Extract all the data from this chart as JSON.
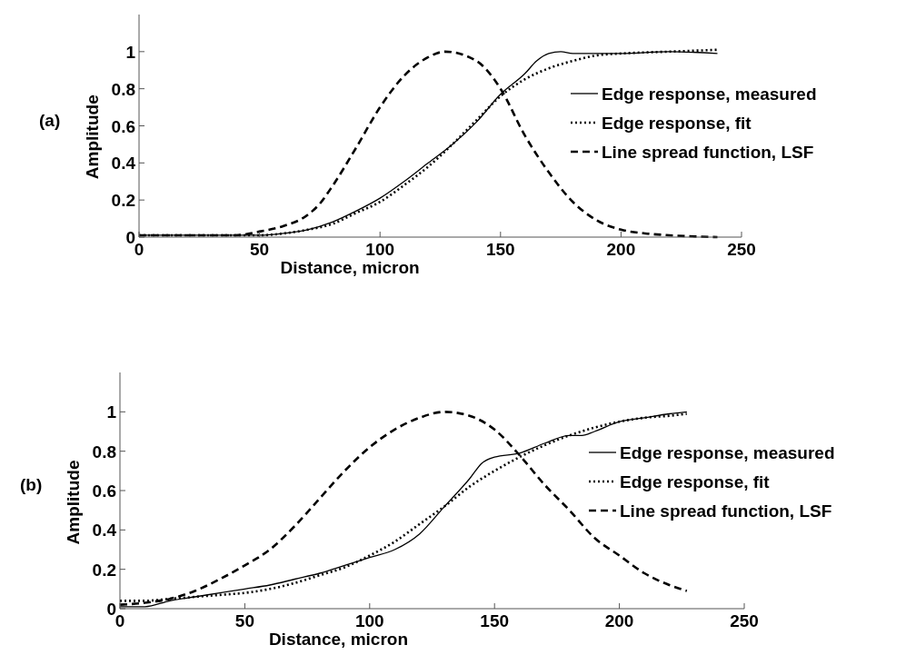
{
  "chart_data": [
    {
      "type": "line",
      "annotations": [
        "(a)"
      ],
      "xlabel": "Distance, micron",
      "ylabel": "Amplitude",
      "xlim": [
        0,
        250
      ],
      "xticks": [
        0,
        50,
        100,
        150,
        200,
        250
      ],
      "ylim": [
        0,
        1.2
      ],
      "yticks": [
        0,
        0.2,
        0.4,
        0.6,
        0.8,
        1
      ],
      "legend": "right",
      "grid": false,
      "series": [
        {
          "name": "Edge response, measured",
          "color": "#000000",
          "line_style": "solid",
          "x": [
            0,
            20,
            40,
            50,
            60,
            70,
            80,
            90,
            100,
            110,
            120,
            130,
            140,
            150,
            160,
            165,
            170,
            175,
            180,
            200,
            220,
            240
          ],
          "values": [
            0.01,
            0.01,
            0.01,
            0.01,
            0.02,
            0.04,
            0.08,
            0.14,
            0.21,
            0.3,
            0.4,
            0.5,
            0.62,
            0.77,
            0.88,
            0.95,
            0.99,
            1.0,
            0.99,
            0.99,
            1.0,
            0.99
          ]
        },
        {
          "name": "Edge response, fit",
          "color": "#000000",
          "line_style": "dotted",
          "x": [
            0,
            20,
            40,
            50,
            60,
            70,
            80,
            90,
            100,
            110,
            120,
            130,
            140,
            150,
            160,
            170,
            180,
            190,
            200,
            220,
            240
          ],
          "values": [
            0.01,
            0.01,
            0.01,
            0.01,
            0.02,
            0.04,
            0.07,
            0.13,
            0.19,
            0.28,
            0.38,
            0.5,
            0.63,
            0.76,
            0.85,
            0.91,
            0.95,
            0.98,
            0.99,
            1.0,
            1.01
          ]
        },
        {
          "name": "Line spread function, LSF",
          "color": "#000000",
          "line_style": "dashed",
          "x": [
            0,
            20,
            40,
            50,
            60,
            70,
            75,
            80,
            90,
            100,
            110,
            120,
            127,
            140,
            150,
            160,
            170,
            180,
            190,
            200,
            210,
            220,
            240
          ],
          "values": [
            0.01,
            0.01,
            0.01,
            0.03,
            0.06,
            0.12,
            0.18,
            0.27,
            0.48,
            0.7,
            0.87,
            0.97,
            1.0,
            0.95,
            0.8,
            0.55,
            0.35,
            0.19,
            0.09,
            0.04,
            0.02,
            0.01,
            0.0
          ]
        }
      ]
    },
    {
      "type": "line",
      "annotations": [
        "(b)"
      ],
      "xlabel": "Distance, micron",
      "ylabel": "Amplitude",
      "xlim": [
        0,
        250
      ],
      "xticks": [
        0,
        50,
        100,
        150,
        200,
        250
      ],
      "ylim": [
        0,
        1.2
      ],
      "yticks": [
        0,
        0.2,
        0.4,
        0.6,
        0.8,
        1
      ],
      "legend": "right",
      "grid": false,
      "series": [
        {
          "name": "Edge response, measured",
          "color": "#000000",
          "line_style": "solid",
          "x": [
            0,
            10,
            20,
            30,
            40,
            50,
            60,
            70,
            80,
            90,
            100,
            110,
            120,
            130,
            140,
            145,
            150,
            160,
            170,
            180,
            185,
            190,
            200,
            210,
            220,
            227
          ],
          "values": [
            0.01,
            0.01,
            0.04,
            0.06,
            0.08,
            0.1,
            0.12,
            0.15,
            0.18,
            0.22,
            0.26,
            0.3,
            0.38,
            0.52,
            0.66,
            0.74,
            0.77,
            0.79,
            0.84,
            0.88,
            0.88,
            0.9,
            0.95,
            0.97,
            0.99,
            1.0
          ]
        },
        {
          "name": "Edge response, fit",
          "color": "#000000",
          "line_style": "dotted",
          "x": [
            0,
            10,
            20,
            30,
            40,
            50,
            60,
            70,
            80,
            90,
            100,
            110,
            120,
            130,
            140,
            150,
            160,
            170,
            180,
            190,
            200,
            210,
            220,
            227
          ],
          "values": [
            0.04,
            0.04,
            0.05,
            0.06,
            0.07,
            0.08,
            0.1,
            0.13,
            0.17,
            0.21,
            0.27,
            0.34,
            0.43,
            0.52,
            0.62,
            0.7,
            0.77,
            0.83,
            0.88,
            0.92,
            0.95,
            0.97,
            0.98,
            0.99
          ]
        },
        {
          "name": "Line spread function, LSF",
          "color": "#000000",
          "line_style": "dashed",
          "x": [
            0,
            10,
            20,
            30,
            40,
            50,
            60,
            70,
            80,
            90,
            100,
            110,
            120,
            130,
            140,
            150,
            160,
            170,
            180,
            190,
            200,
            210,
            220,
            227
          ],
          "values": [
            0.02,
            0.03,
            0.05,
            0.09,
            0.15,
            0.22,
            0.3,
            0.42,
            0.56,
            0.7,
            0.82,
            0.91,
            0.97,
            1.0,
            0.98,
            0.91,
            0.78,
            0.63,
            0.5,
            0.36,
            0.27,
            0.18,
            0.12,
            0.09
          ]
        }
      ]
    }
  ]
}
